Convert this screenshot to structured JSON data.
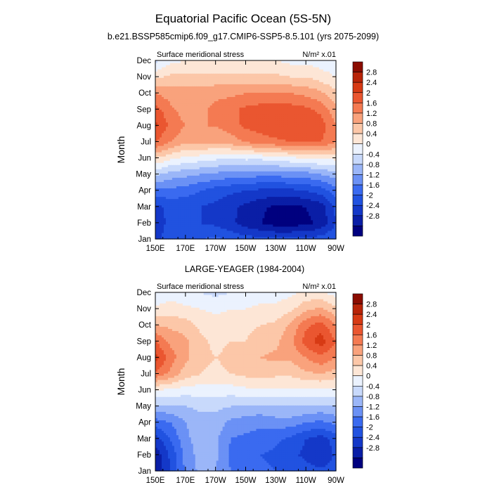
{
  "figure": {
    "title": "Equatorial Pacific Ocean (5S-5N)",
    "subtitle_top": "b.e21.BSSP585cmip6.f09_g17.CMIP6-SSP5-8.5.101 (yrs 2075-2099)",
    "subtitle_bottom": "LARGE-YEAGER (1984-2004)"
  },
  "chart_data": [
    {
      "type": "heatmap",
      "left_label": "Surface meridional stress",
      "right_label": "N/m² x.01",
      "ylabel": "Month",
      "x_ticks": [
        "150E",
        "170E",
        "170W",
        "150W",
        "130W",
        "110W",
        "90W"
      ],
      "y_ticks": [
        "Jan",
        "Feb",
        "Mar",
        "Apr",
        "May",
        "Jun",
        "Jul",
        "Aug",
        "Sep",
        "Oct",
        "Nov",
        "Dec"
      ],
      "columns": [
        "150E",
        "160E",
        "170E",
        "180",
        "170W",
        "160W",
        "150W",
        "140W",
        "130W",
        "120W",
        "110W",
        "100W",
        "90W"
      ],
      "values": [
        [
          -2.2,
          -1.7,
          -1.6,
          -1.6,
          -1.5,
          -1.7,
          -1.8,
          -1.9,
          -1.9,
          -1.9,
          -1.9,
          -1.8,
          -1.6
        ],
        [
          -2.2,
          -1.9,
          -1.9,
          -2.0,
          -2.1,
          -2.3,
          -2.6,
          -2.8,
          -3.0,
          -3.0,
          -2.9,
          -2.7,
          -2.0
        ],
        [
          -2.1,
          -1.9,
          -1.9,
          -2.0,
          -2.1,
          -2.3,
          -2.5,
          -2.7,
          -2.9,
          -2.9,
          -2.8,
          -2.6,
          -1.9
        ],
        [
          -1.3,
          -1.3,
          -1.4,
          -1.6,
          -1.8,
          -1.9,
          -2.0,
          -2.1,
          -2.1,
          -2.1,
          -2.0,
          -1.8,
          -1.4
        ],
        [
          -0.3,
          -0.6,
          -0.7,
          -0.8,
          -0.9,
          -1.0,
          -1.0,
          -1.1,
          -1.1,
          -1.0,
          -1.0,
          -0.8,
          -0.6
        ],
        [
          0.8,
          0.5,
          0.3,
          0.2,
          0.1,
          0.0,
          0.1,
          0.1,
          0.2,
          0.3,
          0.4,
          0.5,
          0.5
        ],
        [
          2.0,
          1.6,
          1.3,
          1.3,
          1.3,
          1.4,
          1.6,
          1.8,
          1.9,
          2.0,
          2.0,
          2.0,
          1.6
        ],
        [
          2.5,
          1.9,
          1.6,
          1.6,
          1.6,
          1.8,
          2.1,
          2.2,
          2.3,
          2.3,
          2.3,
          2.2,
          1.6
        ],
        [
          2.2,
          1.7,
          1.4,
          1.5,
          1.7,
          1.9,
          2.1,
          2.2,
          2.2,
          2.2,
          2.1,
          1.9,
          1.3
        ],
        [
          1.6,
          1.4,
          1.4,
          1.4,
          1.5,
          1.5,
          1.6,
          1.6,
          1.6,
          1.6,
          1.5,
          1.3,
          0.9
        ],
        [
          0.7,
          0.9,
          0.9,
          0.9,
          0.9,
          0.9,
          0.9,
          0.9,
          0.9,
          0.8,
          0.8,
          0.6,
          0.4
        ],
        [
          -0.1,
          0.3,
          0.4,
          0.4,
          0.4,
          0.4,
          0.4,
          0.4,
          0.4,
          0.3,
          0.3,
          0.2,
          0.1
        ]
      ],
      "levels": [
        -2.8,
        -2.4,
        -2.0,
        -1.6,
        -1.2,
        -0.8,
        -0.4,
        0,
        0.4,
        0.8,
        1.2,
        1.6,
        2.0,
        2.4,
        2.8
      ],
      "colorbar_labels": [
        "2.8",
        "2.4",
        "2",
        "1.6",
        "1.2",
        "0.8",
        "0.4",
        "0",
        "-0.4",
        "-0.8",
        "-1.2",
        "-1.6",
        "-2",
        "-2.4",
        "-2.8"
      ]
    },
    {
      "type": "heatmap",
      "left_label": "Surface meridional stress",
      "right_label": "N/m² x.01",
      "ylabel": "Month",
      "x_ticks": [
        "150E",
        "170E",
        "170W",
        "150W",
        "130W",
        "110W",
        "90W"
      ],
      "y_ticks": [
        "Jan",
        "Feb",
        "Mar",
        "Apr",
        "May",
        "Jun",
        "Jul",
        "Aug",
        "Sep",
        "Oct",
        "Nov",
        "Dec"
      ],
      "columns": [
        "150E",
        "160E",
        "170E",
        "180",
        "170W",
        "160W",
        "150W",
        "140W",
        "130W",
        "120W",
        "110W",
        "100W",
        "90W"
      ],
      "values": [
        [
          -2.8,
          -2.0,
          -1.1,
          -0.7,
          -0.8,
          -1.2,
          -1.3,
          -1.5,
          -1.6,
          -1.7,
          -1.8,
          -1.9,
          -1.8
        ],
        [
          -2.7,
          -1.9,
          -1.1,
          -0.6,
          -0.7,
          -1.3,
          -1.4,
          -1.6,
          -1.7,
          -1.9,
          -2.1,
          -2.4,
          -1.9
        ],
        [
          -2.2,
          -1.6,
          -0.9,
          -0.6,
          -0.7,
          -1.2,
          -1.3,
          -1.4,
          -1.5,
          -1.7,
          -2.0,
          -2.2,
          -1.8
        ],
        [
          -1.4,
          -1.2,
          -0.8,
          -0.6,
          -0.6,
          -0.9,
          -1.0,
          -1.1,
          -1.0,
          -1.0,
          -1.2,
          -1.3,
          -1.1
        ],
        [
          -0.5,
          -0.5,
          -0.4,
          -0.3,
          -0.3,
          -0.4,
          -0.5,
          -0.5,
          -0.4,
          -0.4,
          -0.4,
          -0.5,
          -0.4
        ],
        [
          0.4,
          0.3,
          0.2,
          0.2,
          0.2,
          0.2,
          0.3,
          0.3,
          0.3,
          0.3,
          0.3,
          0.3,
          0.3
        ],
        [
          1.9,
          1.5,
          1.0,
          0.8,
          0.7,
          0.8,
          0.9,
          1.0,
          0.9,
          0.9,
          1.1,
          1.2,
          1.0
        ],
        [
          2.6,
          1.8,
          1.3,
          0.9,
          0.8,
          0.9,
          1.0,
          1.2,
          1.3,
          1.3,
          1.6,
          1.9,
          1.6
        ],
        [
          2.0,
          1.5,
          1.3,
          0.9,
          0.7,
          0.8,
          0.8,
          1.0,
          1.1,
          1.5,
          2.2,
          2.6,
          2.0
        ],
        [
          1.2,
          1.1,
          1.0,
          0.7,
          0.6,
          0.6,
          0.7,
          0.8,
          0.9,
          1.3,
          1.9,
          2.2,
          1.6
        ],
        [
          0.5,
          0.6,
          0.5,
          0.4,
          0.3,
          0.4,
          0.4,
          0.5,
          0.5,
          0.7,
          1.1,
          1.3,
          0.9
        ],
        [
          0.0,
          0.2,
          0.1,
          0.0,
          -0.1,
          0.0,
          0.1,
          0.2,
          0.2,
          0.3,
          0.5,
          0.5,
          0.2
        ]
      ],
      "levels": [
        -2.8,
        -2.4,
        -2.0,
        -1.6,
        -1.2,
        -0.8,
        -0.4,
        0,
        0.4,
        0.8,
        1.2,
        1.6,
        2.0,
        2.4,
        2.8
      ],
      "colorbar_labels": [
        "2.8",
        "2.4",
        "2",
        "1.6",
        "1.2",
        "0.8",
        "0.4",
        "0",
        "-0.4",
        "-0.8",
        "-1.2",
        "-1.6",
        "-2",
        "-2.4",
        "-2.8"
      ]
    }
  ],
  "colors": {
    "palette": [
      "#00007f",
      "#0a1ea6",
      "#1438c8",
      "#2152e0",
      "#3a6af0",
      "#6b91f5",
      "#9bb6f8",
      "#c8d9fb",
      "#ebf2fe",
      "#fde6d6",
      "#fcc7a8",
      "#f9a27c",
      "#f47a52",
      "#ea5630",
      "#d73a14",
      "#b82408",
      "#8b0c00"
    ]
  }
}
